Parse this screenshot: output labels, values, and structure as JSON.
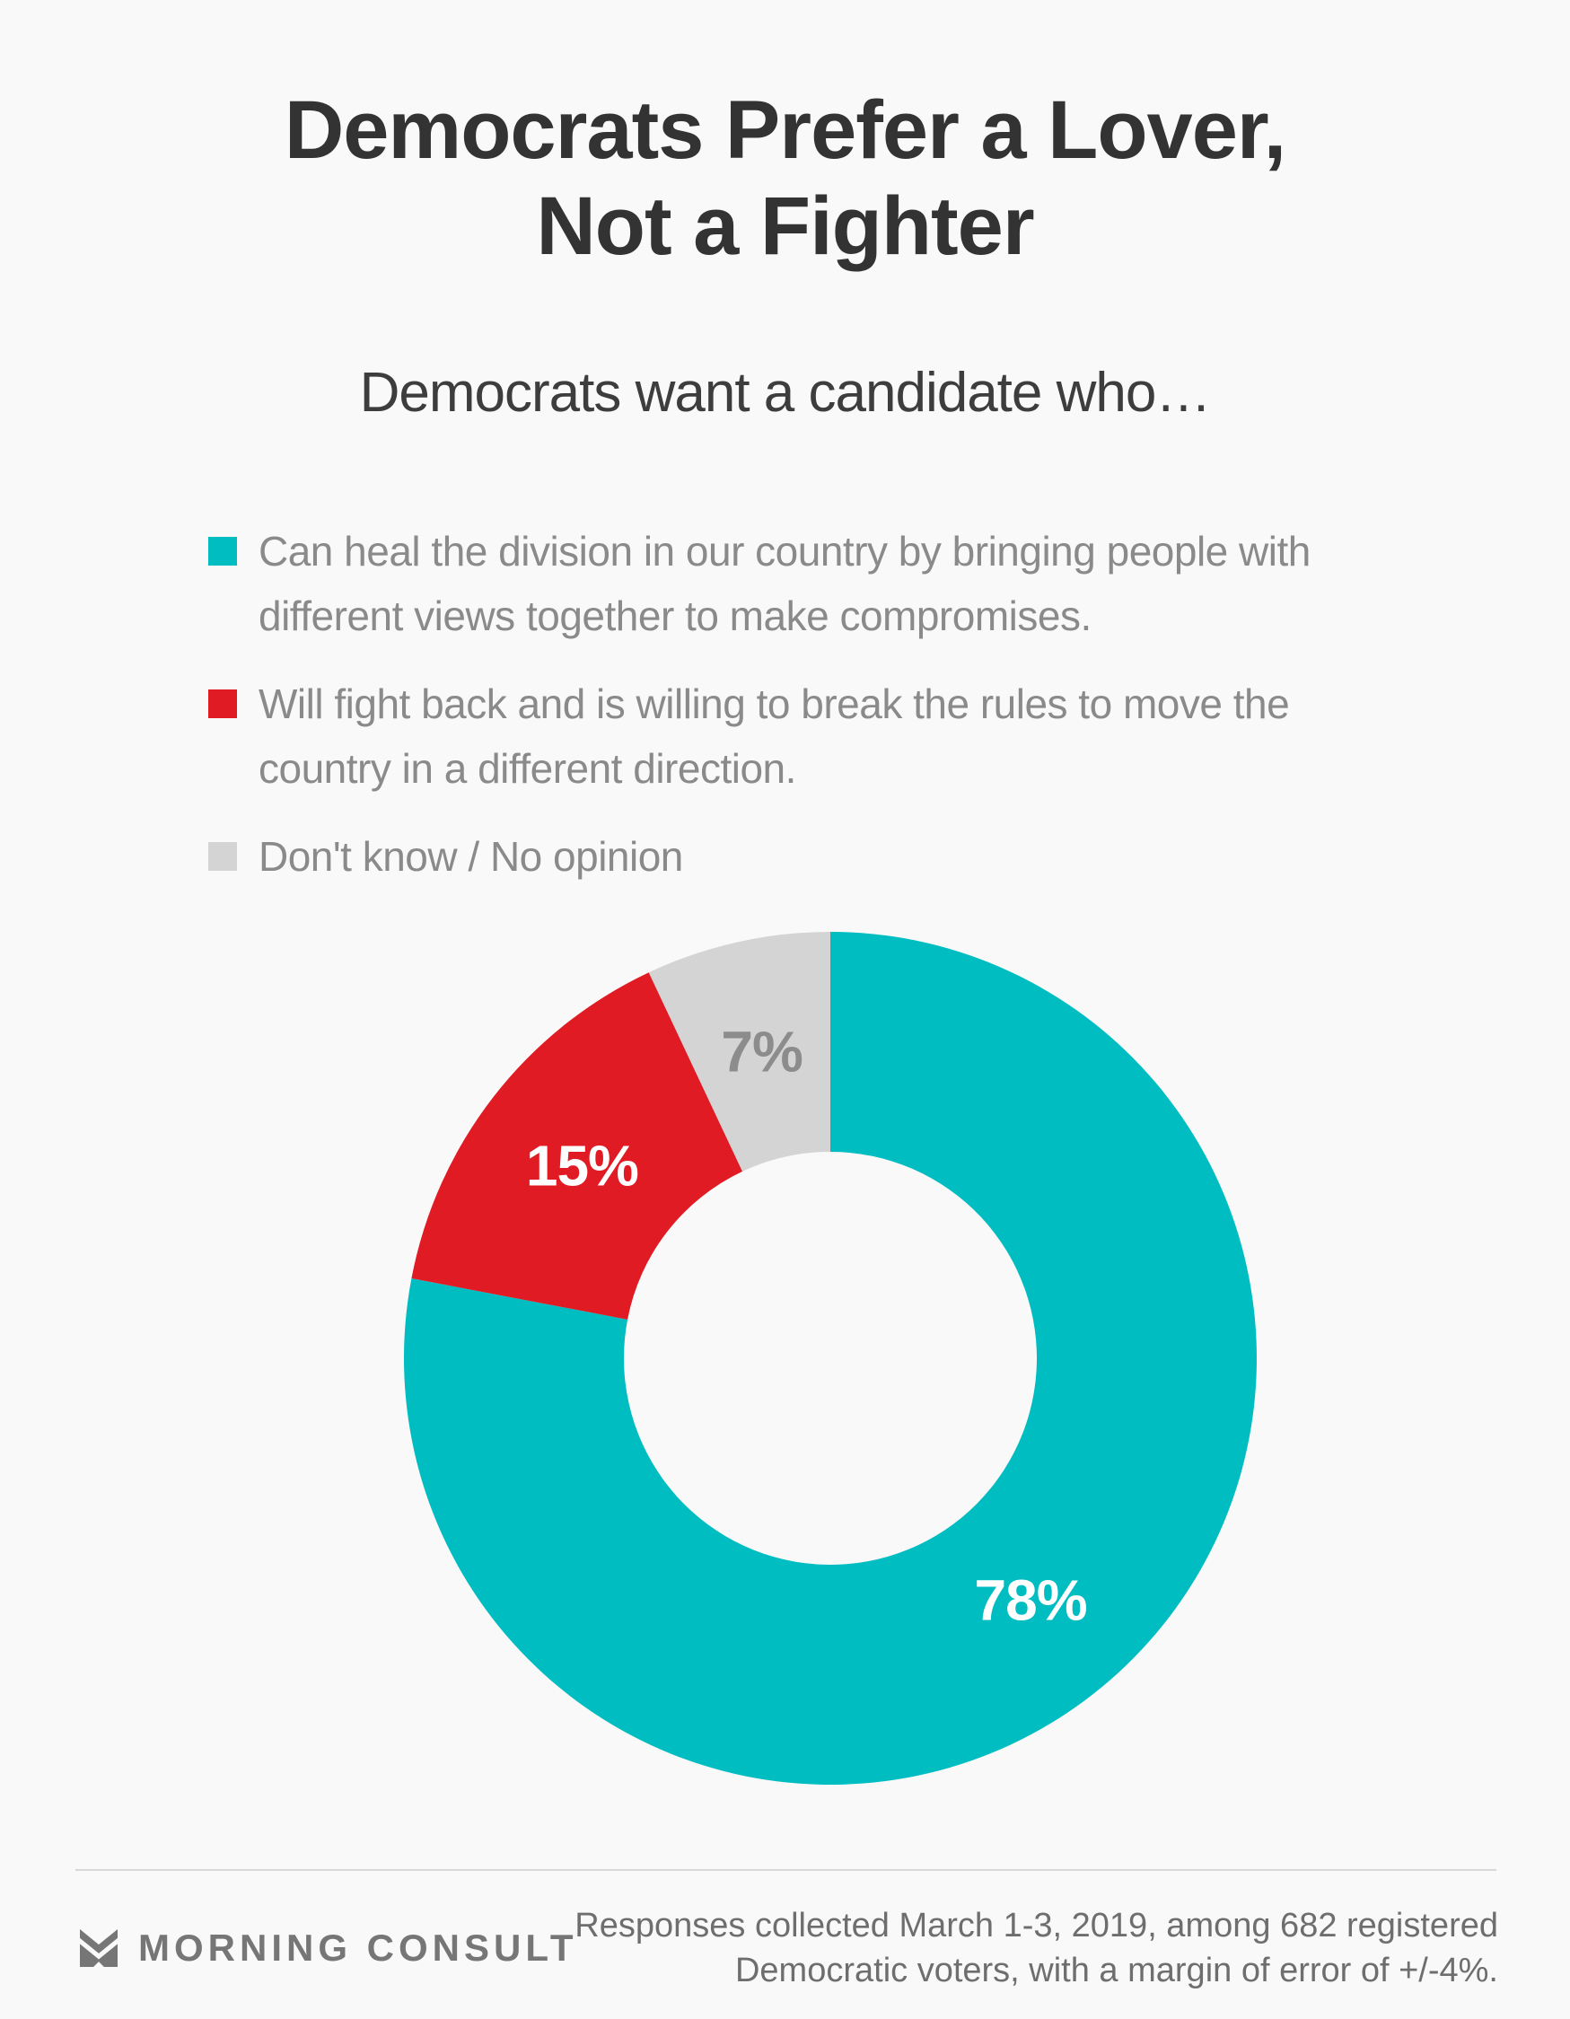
{
  "page": {
    "background_color": "#f9f9f9"
  },
  "title": {
    "line1": "Democrats Prefer a Lover,",
    "line2": "Not a Fighter"
  },
  "subtitle": "Democrats want a candidate who…",
  "legend": {
    "items": [
      {
        "color": "#00bdc2",
        "label": "Can heal the division in our country by bringing people with different views together to make compromises.",
        "lines": [
          "Can heal the division in our country by bringing people with",
          "different views together to make compromises."
        ]
      },
      {
        "color": "#e01b23",
        "label": "Will fight back and is willing to break the rules to move the country in a different direction.",
        "lines": [
          "Will fight back and is willing to break the rules to move the",
          "country in a different direction."
        ]
      },
      {
        "color": "#d4d4d4",
        "label": "Don't know / No opinion",
        "lines": [
          "Don't know / No opinion"
        ]
      }
    ]
  },
  "chart_data": {
    "type": "pie",
    "subtype": "donut",
    "title": "Democrats Prefer a Lover, Not a Fighter",
    "subtitle": "Democrats want a candidate who…",
    "categories": [
      "Can heal the division in our country by bringing people with different views together to make compromises.",
      "Will fight back and is willing to break the rules to move the country in a different direction.",
      "Don't know / No opinion"
    ],
    "values": [
      78,
      15,
      7
    ],
    "unit": "%",
    "labels": [
      "78%",
      "15%",
      "7%"
    ],
    "colors": [
      "#00bdc2",
      "#e01b23",
      "#d4d4d4"
    ],
    "label_colors": [
      "#ffffff",
      "#ffffff",
      "#8c8c8c"
    ],
    "start_angle_deg": 0,
    "direction": "clockwise",
    "outer_radius": 475,
    "inner_radius": 230,
    "label_radius": 350,
    "legend_position": "top-left"
  },
  "footer": {
    "logo_text": "MORNING CONSULT",
    "source_line1": "Responses collected March 1-3, 2019, among 682 registered",
    "source_line2": "Democratic voters, with a margin of error of +/-4%."
  }
}
